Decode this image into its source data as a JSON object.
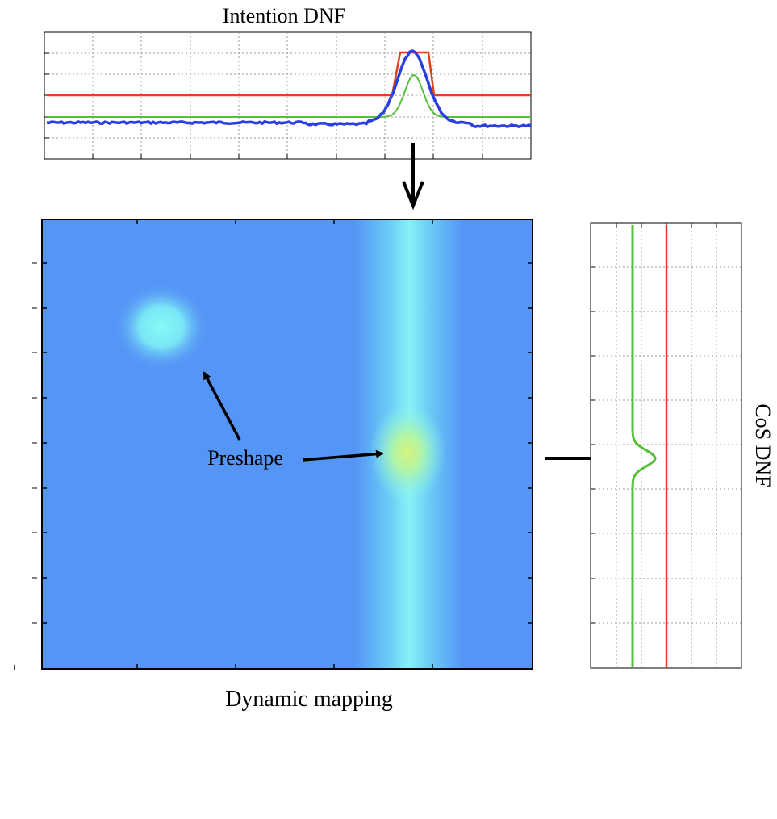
{
  "labels": {
    "top_title": "Intention DNF",
    "bottom_title": "Dynamic mapping",
    "side_title": "CoS DNF",
    "preshape": "Preshape"
  },
  "colors": {
    "background": "#ffffff",
    "field_base": "#5595f6",
    "field_cyan": "#7ff5f8",
    "field_yellow": "#c6f590",
    "red_line": "#e2401c",
    "blue_line": "#2a3fe3",
    "green_line": "#55c13a",
    "grid": "#9a9a9a",
    "axis": "#000000"
  },
  "icons": [
    "arrow-down",
    "arrow-right",
    "arrow-pointer"
  ]
}
